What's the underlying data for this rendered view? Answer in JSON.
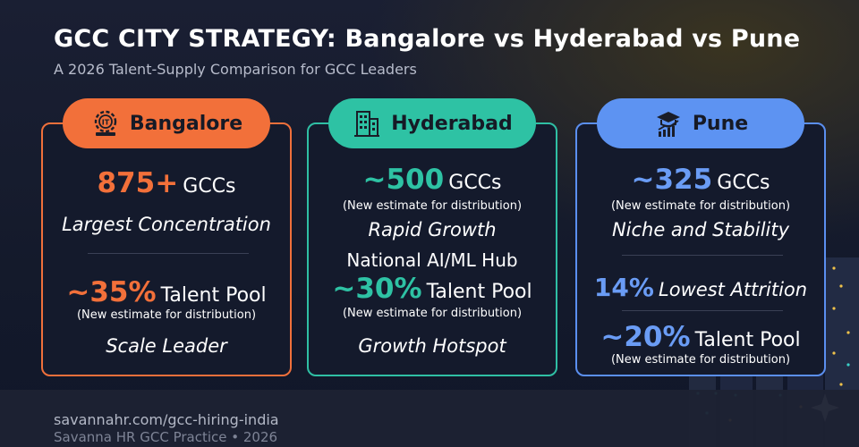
{
  "header": {
    "title": "GCC CITY STRATEGY: Bangalore vs Hyderabad vs Pune",
    "subtitle": "A 2026 Talent-Supply Comparison for GCC Leaders"
  },
  "colors": {
    "bangalore": "#f2703a",
    "hyderabad": "#2ec2a4",
    "pune": "#5d93f2",
    "background": "#1a1f33"
  },
  "cards": {
    "bangalore": {
      "icon": "it-gear-icon",
      "name": "Bangalore",
      "gcc_value": "875+",
      "gcc_unit": "GCCs",
      "gcc_tag": "Largest Concentration",
      "talent_value": "~35%",
      "talent_unit": "Talent Pool",
      "talent_note": "(New estimate for distribution)",
      "tagline": "Scale Leader"
    },
    "hyderabad": {
      "icon": "office-building-icon",
      "name": "Hyderabad",
      "gcc_value": "~500",
      "gcc_unit": "GCCs",
      "gcc_note": "(New estimate for distribution)",
      "gcc_tag": "Rapid Growth",
      "hub": "National AI/ML Hub",
      "talent_value": "~30%",
      "talent_unit": "Talent Pool",
      "talent_note": "(New estimate for distribution)",
      "tagline": "Growth Hotspot"
    },
    "pune": {
      "icon": "graduation-chart-icon",
      "name": "Pune",
      "gcc_value": "~325",
      "gcc_unit": "GCCs",
      "gcc_note": "(New estimate for distribution)",
      "gcc_tag": "Niche and Stability",
      "attrition_value": "14%",
      "attrition_label": "Lowest Attrition",
      "talent_value": "~20%",
      "talent_unit": "Talent Pool",
      "talent_note": "(New estimate for distribution)"
    }
  },
  "footer": {
    "url": "savannahr.com/gcc-hiring-india",
    "org": "Savanna HR GCC Practice  •  2026"
  }
}
